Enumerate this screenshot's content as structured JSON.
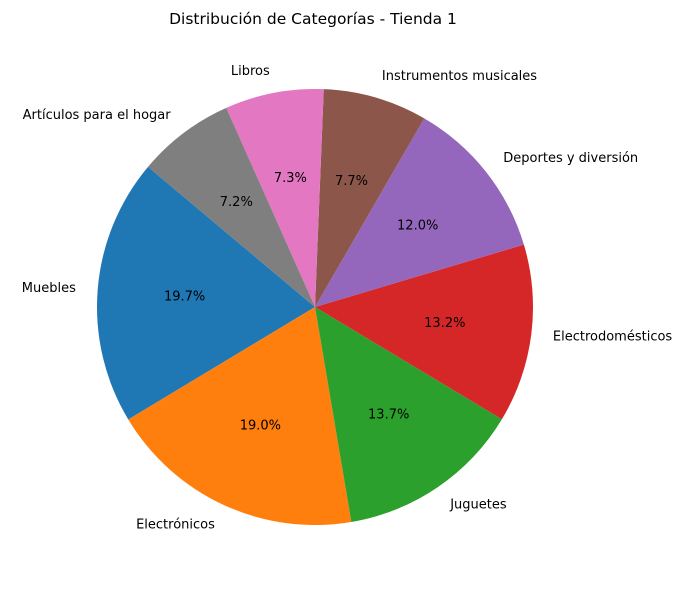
{
  "chart_data": {
    "type": "pie",
    "title": "Distribución de Categorías - Tienda 1",
    "categories": [
      "Muebles",
      "Electrónicos",
      "Juguetes",
      "Electrodomésticos",
      "Deportes y diversión",
      "Instrumentos musicales",
      "Libros",
      "Artículos para el hogar"
    ],
    "values": [
      19.7,
      19.0,
      13.7,
      13.2,
      12.0,
      7.7,
      7.3,
      7.2
    ],
    "value_labels": [
      "19.7%",
      "19.0%",
      "13.7%",
      "13.2%",
      "12.0%",
      "7.7%",
      "7.3%",
      "7.2%"
    ],
    "colors": [
      "#1f77b4",
      "#ff7f0e",
      "#2ca02c",
      "#d62728",
      "#9467bd",
      "#8c564b",
      "#e377c2",
      "#7f7f7f"
    ],
    "start_angle_deg": 140,
    "direction": "counterclockwise",
    "legend": "none"
  }
}
